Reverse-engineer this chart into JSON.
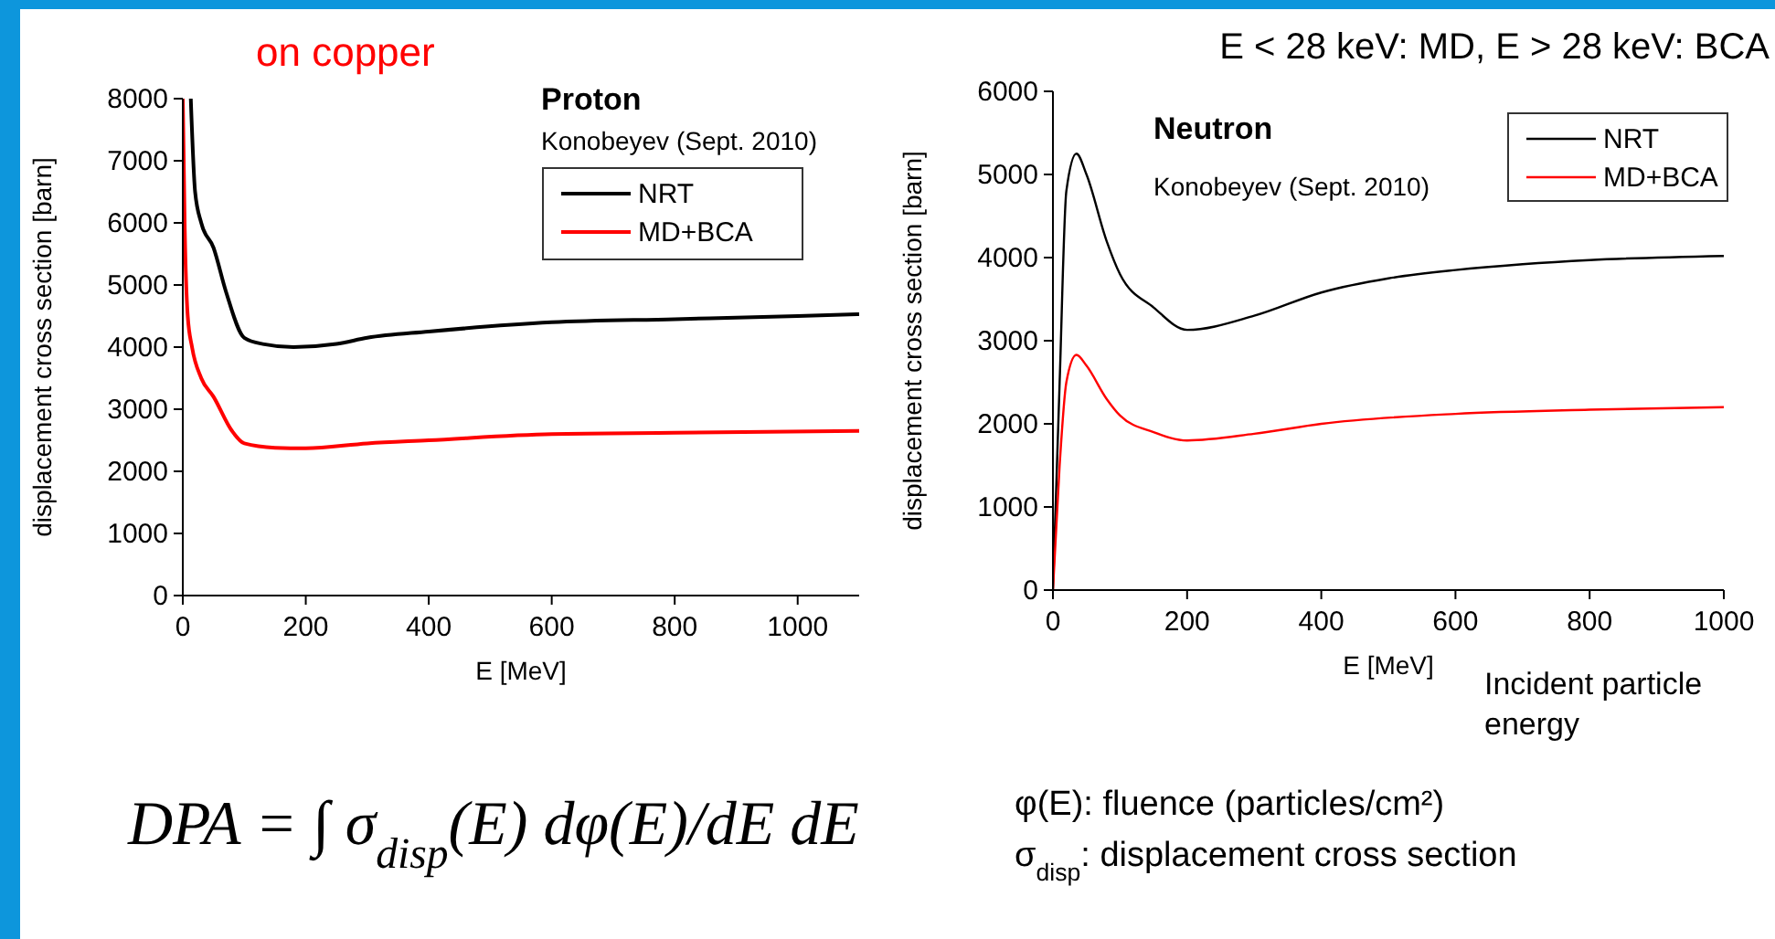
{
  "chart_data": [
    {
      "type": "line",
      "title": "Proton",
      "subtitle": "Konobeyev (Sept. 2010)",
      "xlabel": "E [MeV]",
      "ylabel": "displacement cross section [barn]",
      "xlim": [
        0,
        1100
      ],
      "xticks": [
        0,
        200,
        400,
        600,
        800,
        1000
      ],
      "ylim": [
        0,
        8000
      ],
      "yticks": [
        0,
        1000,
        2000,
        3000,
        4000,
        5000,
        6000,
        7000,
        8000
      ],
      "legend": "top right",
      "grid": false,
      "annotations": [
        "on copper",
        "DPA = ∫ σ$_{disp}$(E) dφ(E)/dE dE"
      ],
      "series": [
        {
          "name": "NRT",
          "color": "#000000",
          "x": [
            13,
            20,
            30,
            50,
            70,
            100,
            130,
            180,
            250,
            300,
            400,
            600,
            800,
            1000,
            1100
          ],
          "values": [
            8000,
            6500,
            6000,
            5600,
            4900,
            4150,
            4050,
            4000,
            4050,
            4150,
            4250,
            4400,
            4450,
            4500,
            4530
          ]
        },
        {
          "name": "MD+BCA",
          "color": "#ff0000",
          "x": [
            0,
            3,
            8,
            15,
            30,
            50,
            80,
            100,
            150,
            200,
            300,
            400,
            600,
            800,
            1100
          ],
          "values": [
            8000,
            6000,
            4500,
            4000,
            3500,
            3200,
            2650,
            2450,
            2380,
            2370,
            2450,
            2500,
            2600,
            2620,
            2650
          ]
        }
      ]
    },
    {
      "type": "line",
      "title": "Neutron",
      "subtitle": "Konobeyev (Sept. 2010)",
      "xlabel": "E [MeV]",
      "ylabel": "displacement cross section [barn]",
      "xlim": [
        0,
        1000
      ],
      "xticks": [
        0,
        200,
        400,
        600,
        800,
        1000
      ],
      "ylim": [
        0,
        6000
      ],
      "yticks": [
        0,
        1000,
        2000,
        3000,
        4000,
        5000,
        6000
      ],
      "legend": "top right",
      "grid": false,
      "annotations": [
        "E < 28 keV: MD, E > 28 keV: BCA",
        "Incident particle energy",
        "φ(E): fluence (particles/cm²)",
        "σ$_{disp}$: displacement cross section"
      ],
      "series": [
        {
          "name": "NRT",
          "color": "#000000",
          "x": [
            0,
            10,
            20,
            35,
            50,
            80,
            100,
            150,
            200,
            300,
            400,
            500,
            600,
            700,
            800,
            1000
          ],
          "values": [
            0,
            2500,
            4800,
            5250,
            5000,
            4200,
            3800,
            3400,
            3130,
            3300,
            3580,
            3750,
            3850,
            3920,
            3970,
            4020
          ]
        },
        {
          "name": "MD+BCA",
          "color": "#ff0000",
          "x": [
            0,
            10,
            20,
            35,
            50,
            80,
            100,
            150,
            200,
            300,
            400,
            600,
            800,
            1000
          ],
          "values": [
            0,
            1500,
            2500,
            2830,
            2700,
            2300,
            2100,
            1900,
            1800,
            1880,
            2000,
            2120,
            2170,
            2200
          ]
        }
      ]
    }
  ]
}
